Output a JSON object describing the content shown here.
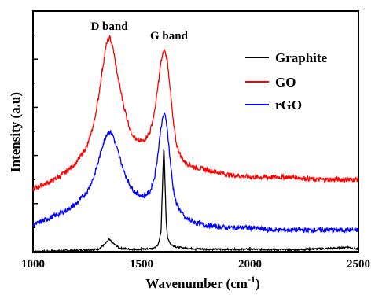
{
  "chart_data": {
    "type": "line",
    "title": "",
    "xlabel": "Wavenumber (cm",
    "xlabel_sup": "-1",
    "xlabel_close": ")",
    "ylabel": "Intensity (a.u)",
    "xlim": [
      1000,
      2500
    ],
    "ylim": [
      0,
      100
    ],
    "x_ticks": [
      1000,
      1500,
      2000,
      2500
    ],
    "x_tick_labels": [
      "1000",
      "1500",
      "2000",
      "2500"
    ],
    "y_ticks_unlabeled": [
      0,
      20,
      40,
      60,
      80
    ],
    "grid": false,
    "legend_position": "top-right",
    "colors": {
      "Graphite": "#000000",
      "GO": "#ff0000",
      "rGO": "#0000ff"
    },
    "annotations": [
      {
        "text": "D band",
        "x": 1350
      },
      {
        "text": "G band",
        "x": 1600
      }
    ],
    "series": [
      {
        "name": "Graphite",
        "x": [
          1000,
          1100,
          1200,
          1300,
          1330,
          1350,
          1360,
          1375,
          1400,
          1450,
          1500,
          1550,
          1575,
          1590,
          1597,
          1603,
          1608,
          1614,
          1620,
          1635,
          1660,
          1700,
          1800,
          2000,
          2200,
          2400,
          2450,
          2470,
          2500
        ],
        "y": [
          0,
          0.3,
          0.6,
          1,
          3,
          5,
          4.5,
          3,
          1.5,
          1,
          1,
          1.3,
          2.5,
          8,
          28,
          45,
          30,
          12,
          6,
          3,
          2,
          1.5,
          1,
          1,
          0.8,
          1.5,
          2,
          1.5,
          1
        ]
      },
      {
        "name": "GO",
        "x": [
          1000,
          1100,
          1150,
          1200,
          1250,
          1280,
          1300,
          1320,
          1340,
          1355,
          1370,
          1390,
          1420,
          1450,
          1480,
          1510,
          1540,
          1560,
          1575,
          1590,
          1605,
          1618,
          1630,
          1645,
          1660,
          1680,
          1700,
          1750,
          1800,
          1900,
          2000,
          2100,
          2200,
          2300,
          2400,
          2500
        ],
        "y": [
          26,
          30,
          33,
          37,
          44,
          53,
          63,
          76,
          87,
          89,
          84,
          73,
          60,
          50,
          46,
          46,
          50,
          58,
          68,
          79,
          84,
          80,
          70,
          55,
          45,
          40,
          37,
          35,
          34,
          32,
          31,
          31,
          31,
          30,
          30,
          30
        ]
      },
      {
        "name": "rGO",
        "x": [
          1000,
          1100,
          1150,
          1200,
          1250,
          1280,
          1300,
          1320,
          1340,
          1355,
          1370,
          1390,
          1420,
          1450,
          1480,
          1510,
          1540,
          1560,
          1575,
          1590,
          1605,
          1618,
          1630,
          1645,
          1660,
          1680,
          1700,
          1750,
          1800,
          1900,
          2000,
          2100,
          2200,
          2300,
          2400,
          2500
        ],
        "y": [
          11,
          15,
          17,
          20,
          25,
          31,
          37,
          44,
          49,
          50,
          48,
          42,
          33,
          27,
          24,
          23,
          25,
          31,
          40,
          52,
          58,
          52,
          40,
          27,
          20,
          17,
          14,
          12,
          11,
          10,
          10,
          9,
          9,
          9,
          9,
          9
        ]
      }
    ]
  }
}
